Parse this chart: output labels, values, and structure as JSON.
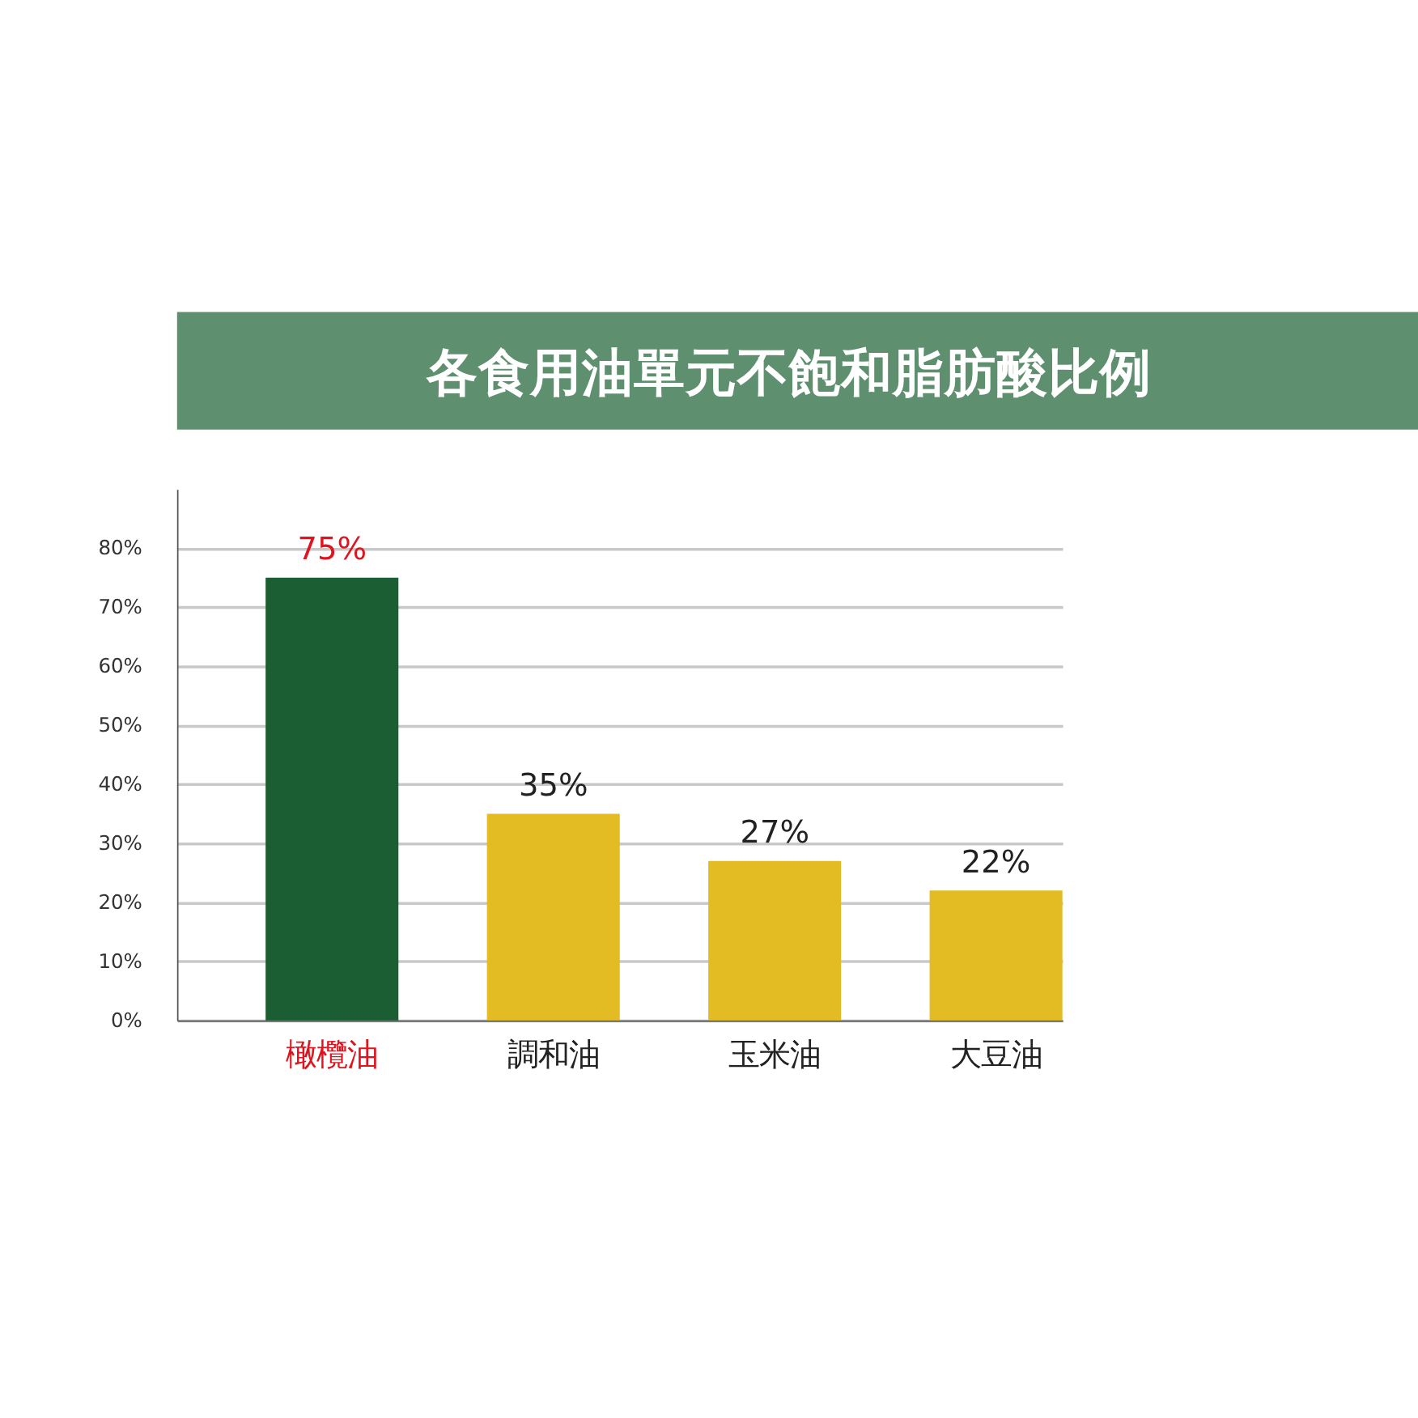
{
  "chart_data": {
    "type": "bar",
    "title": "各食用油單元不飽和脂肪酸比例",
    "categories": [
      "橄欖油",
      "調和油",
      "玉米油",
      "大豆油"
    ],
    "values": [
      75,
      35,
      27,
      22
    ],
    "colors": [
      "#1b5e33",
      "#e3bb22",
      "#e3bb22",
      "#e3bb22"
    ],
    "value_labels": [
      "75%",
      "35%",
      "27%",
      "22%"
    ],
    "ylim": [
      0,
      90
    ],
    "yticks": [
      {
        "value": 0,
        "label": "0%"
      },
      {
        "value": 10,
        "label": "10%"
      },
      {
        "value": 20,
        "label": "20%"
      },
      {
        "value": 30,
        "label": "30%"
      },
      {
        "value": 40,
        "label": "40%"
      },
      {
        "value": 50,
        "label": "50%"
      },
      {
        "value": 60,
        "label": "60%"
      },
      {
        "value": 70,
        "label": "70%"
      },
      {
        "value": 80,
        "label": "80%"
      }
    ],
    "grid": "y",
    "legend": false
  }
}
